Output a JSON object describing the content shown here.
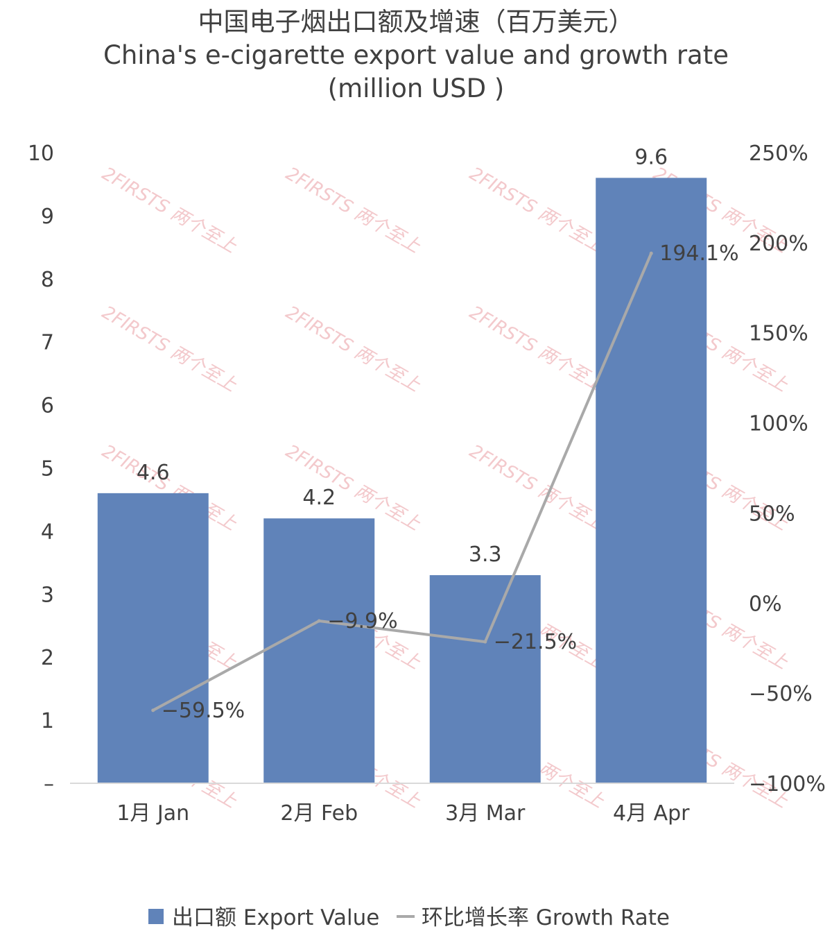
{
  "chart_data": {
    "type": "bar",
    "title": "中国电子烟出口额及增速（百万美元）",
    "subtitle": "China's e-cigarette export value and growth rate",
    "subtitle2": "(million USD )",
    "categories": [
      "1月 Jan",
      "2月 Feb",
      "3月 Mar",
      "4月 Apr"
    ],
    "series": [
      {
        "name": "出口额 Export Value",
        "type": "bar",
        "axis": "left",
        "color": "#6083b9",
        "values": [
          4.6,
          4.2,
          3.3,
          9.6
        ],
        "labels": [
          "4.6",
          "4.2",
          "3.3",
          "9.6"
        ]
      },
      {
        "name": "环比增长率 Growth Rate",
        "type": "line",
        "axis": "right",
        "color": "#a9a9a9",
        "values": [
          -59.5,
          -9.9,
          -21.5,
          194.1
        ],
        "labels": [
          "−59.5%",
          "−9.9%",
          "−21.5%",
          "194.1%"
        ]
      }
    ],
    "y_left": {
      "ylim": [
        0,
        10
      ],
      "ticks": [
        0,
        1,
        2,
        3,
        4,
        5,
        6,
        7,
        8,
        9,
        10
      ],
      "tick_labels": [
        "–",
        "1",
        "2",
        "3",
        "4",
        "5",
        "6",
        "7",
        "8",
        "9",
        "10"
      ]
    },
    "y_right": {
      "ylim": [
        -100,
        250
      ],
      "ticks": [
        -100,
        -50,
        0,
        50,
        100,
        150,
        200,
        250
      ],
      "tick_labels": [
        "−100%",
        "−50%",
        "0%",
        "50%",
        "100%",
        "150%",
        "200%",
        "250%"
      ]
    },
    "grid": false,
    "legend": "bottom",
    "watermark": "2FIRSTS 两个至上"
  }
}
